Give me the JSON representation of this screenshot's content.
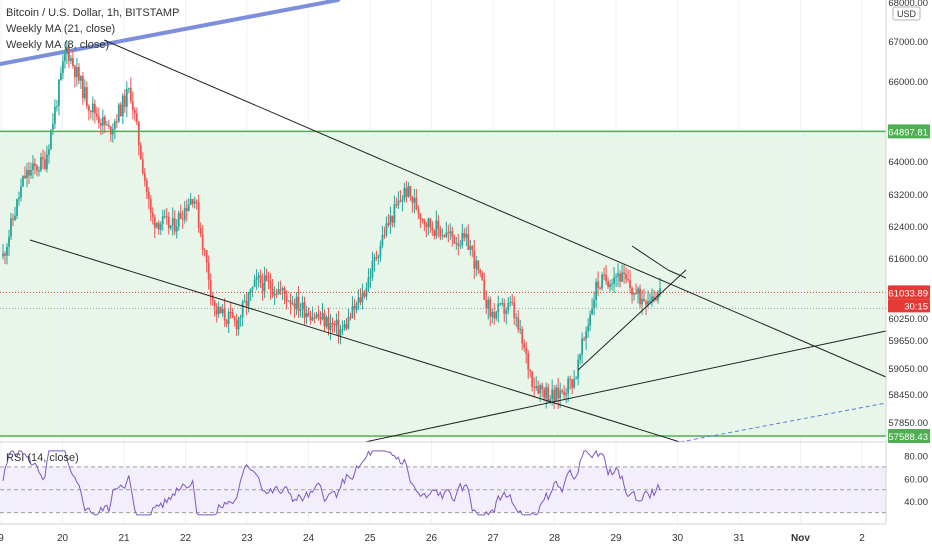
{
  "header": {
    "symbol_title": "Bitcoin / U.S. Dollar, 1h, BITSTAMP",
    "indicator_1": "Weekly MA (21, close)",
    "indicator_2": "Weekly MA (8, close)"
  },
  "rsi": {
    "label": "RSI (14, close)",
    "ticks": [
      "80.00",
      "60.00",
      "40.00"
    ]
  },
  "colors": {
    "bull": "#26a69a",
    "bear": "#ef5350",
    "band": "#e8f5e9",
    "hline": "#4caf50",
    "trend": "#222222",
    "ma": "#7b8fdc",
    "rsi": "#7e57c2",
    "rsi_band": "#f3eefc",
    "current_price": "#e53935"
  },
  "chart_data": {
    "type": "candlestick",
    "title": "Bitcoin / U.S. Dollar, 1h, BITSTAMP",
    "currency": "USD",
    "price_ticks": [
      "68000.00",
      "67000.00",
      "66000.00",
      "64000.00",
      "63200.00",
      "62400.00",
      "61600.00",
      "60250.00",
      "59650.00",
      "59050.00",
      "58450.00",
      "57850.00"
    ],
    "price_labels": [
      {
        "price": 64897.81,
        "text": "64897.81",
        "kind": "horizontal-line"
      },
      {
        "price": 57588.43,
        "text": "57588.43",
        "kind": "horizontal-line"
      },
      {
        "price": 61033.89,
        "text": "61033.89",
        "kind": "current-price",
        "countdown": "30:15"
      }
    ],
    "x_ticks": [
      "9",
      "20",
      "21",
      "22",
      "23",
      "24",
      "25",
      "26",
      "27",
      "28",
      "29",
      "30",
      "31",
      "Nov",
      "2"
    ],
    "close_series": [
      {
        "date": "Oct 19",
        "close": 61900
      },
      {
        "date": "Oct 20",
        "close": 63800
      },
      {
        "date": "Oct 20",
        "close": 64200
      },
      {
        "date": "Oct 20",
        "close": 66900
      },
      {
        "date": "Oct 21",
        "close": 65600
      },
      {
        "date": "Oct 21",
        "close": 64900
      },
      {
        "date": "Oct 21",
        "close": 65900
      },
      {
        "date": "Oct 21",
        "close": 62800
      },
      {
        "date": "Oct 22",
        "close": 62600
      },
      {
        "date": "Oct 22",
        "close": 63400
      },
      {
        "date": "Oct 22",
        "close": 60600
      },
      {
        "date": "Oct 23",
        "close": 60300
      },
      {
        "date": "Oct 23",
        "close": 61300
      },
      {
        "date": "Oct 23",
        "close": 61100
      },
      {
        "date": "Oct 24",
        "close": 60700
      },
      {
        "date": "Oct 24",
        "close": 60400
      },
      {
        "date": "Oct 24",
        "close": 60100
      },
      {
        "date": "Oct 25",
        "close": 61000
      },
      {
        "date": "Oct 25",
        "close": 62500
      },
      {
        "date": "Oct 25",
        "close": 63500
      },
      {
        "date": "Oct 26",
        "close": 62700
      },
      {
        "date": "Oct 26",
        "close": 62400
      },
      {
        "date": "Oct 26",
        "close": 62200
      },
      {
        "date": "Oct 27",
        "close": 60500
      },
      {
        "date": "Oct 27",
        "close": 60700
      },
      {
        "date": "Oct 27",
        "close": 58900
      },
      {
        "date": "Oct 28",
        "close": 58500
      },
      {
        "date": "Oct 28",
        "close": 59000
      },
      {
        "date": "Oct 28",
        "close": 61200
      },
      {
        "date": "Oct 29",
        "close": 61500
      },
      {
        "date": "Oct 29",
        "close": 60900
      },
      {
        "date": "Oct 29",
        "close": 61034
      }
    ],
    "rsi_range": [
      20,
      90
    ],
    "rsi_levels": [
      70,
      50,
      30
    ]
  }
}
